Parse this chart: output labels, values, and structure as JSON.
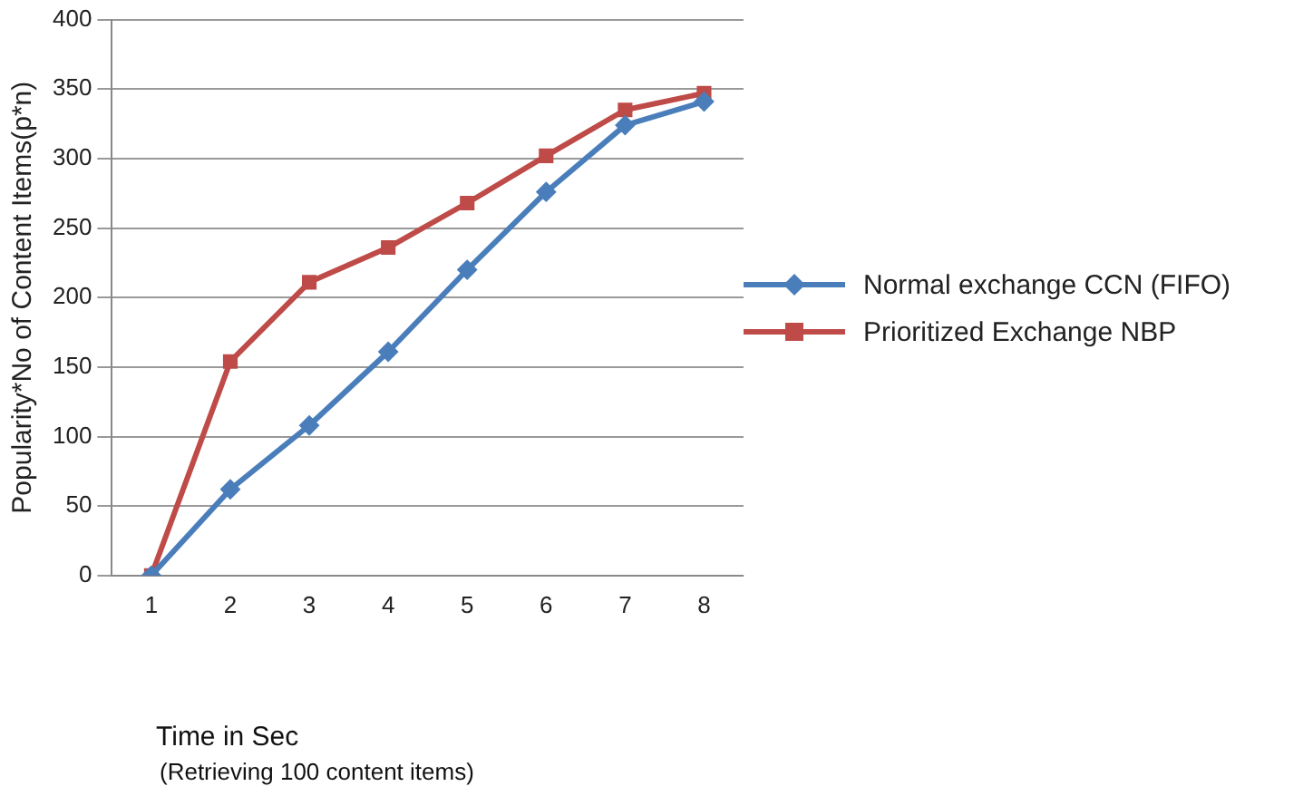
{
  "chart_data": {
    "type": "line",
    "xlabel": "Time in Sec",
    "ylabel": "Popularity*No of Content Items(p*n)",
    "annotations": [
      "(Retrieving 100 content items)"
    ],
    "categories": [
      "1",
      "2",
      "3",
      "4",
      "5",
      "6",
      "7",
      "8"
    ],
    "series": [
      {
        "name": "Normal exchange CCN (FIFO)",
        "color": "#4a7ebb",
        "marker": "diamond",
        "values": [
          0,
          62,
          108,
          161,
          220,
          276,
          324,
          341
        ]
      },
      {
        "name": "Prioritized Exchange NBP",
        "color": "#be4b48",
        "marker": "square",
        "values": [
          0,
          154,
          211,
          236,
          268,
          302,
          335,
          347
        ]
      }
    ],
    "ylim": [
      0,
      400
    ],
    "yticks": [
      0,
      50,
      100,
      150,
      200,
      250,
      300,
      350,
      400
    ],
    "grid": "y",
    "legend": "right",
    "line_style": "solid"
  }
}
